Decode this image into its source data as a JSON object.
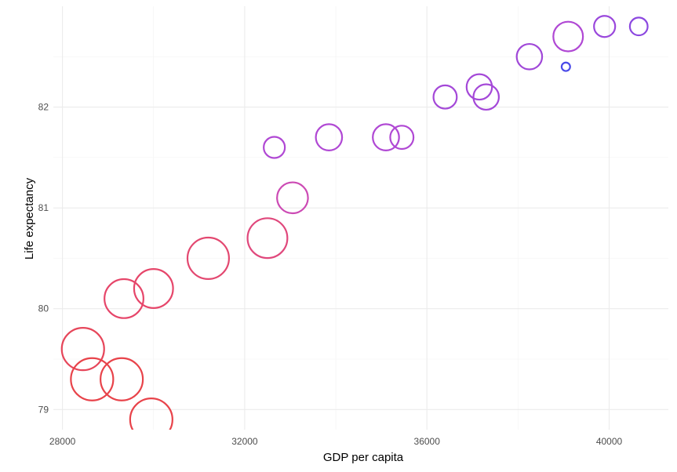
{
  "chart_data": {
    "type": "scatter",
    "title": "",
    "xlabel": "GDP per capita",
    "ylabel": "Life expectancy",
    "xlim": [
      27800,
      41300
    ],
    "ylim": [
      78.8,
      83.0
    ],
    "x_ticks": [
      28000,
      32000,
      36000,
      40000
    ],
    "x_tick_labels": [
      "28000",
      "32000",
      "36000",
      "40000"
    ],
    "y_ticks": [
      79,
      80,
      81,
      82
    ],
    "y_tick_labels": [
      "79",
      "80",
      "81",
      "82"
    ],
    "grid": true,
    "legend": "none",
    "color_scale": [
      "#e8434a",
      "#4848e8"
    ],
    "points": [
      {
        "x": 28450,
        "y": 79.6,
        "size": 1.0,
        "color": "#e6465a"
      },
      {
        "x": 28650,
        "y": 79.3,
        "size": 1.0,
        "color": "#e8434a"
      },
      {
        "x": 29300,
        "y": 79.3,
        "size": 1.0,
        "color": "#e8434a"
      },
      {
        "x": 29350,
        "y": 80.1,
        "size": 0.92,
        "color": "#e6466a"
      },
      {
        "x": 29950,
        "y": 78.9,
        "size": 1.0,
        "color": "#e8434a"
      },
      {
        "x": 30000,
        "y": 80.2,
        "size": 0.92,
        "color": "#e6466a"
      },
      {
        "x": 31200,
        "y": 80.5,
        "size": 0.98,
        "color": "#e34870"
      },
      {
        "x": 32500,
        "y": 80.7,
        "size": 0.94,
        "color": "#e0487c"
      },
      {
        "x": 33050,
        "y": 81.1,
        "size": 0.73,
        "color": "#cc4ab4"
      },
      {
        "x": 32650,
        "y": 81.6,
        "size": 0.5,
        "color": "#b048d4"
      },
      {
        "x": 33850,
        "y": 81.7,
        "size": 0.62,
        "color": "#b048d4"
      },
      {
        "x": 35100,
        "y": 81.7,
        "size": 0.62,
        "color": "#b048d4"
      },
      {
        "x": 35450,
        "y": 81.7,
        "size": 0.55,
        "color": "#b048d4"
      },
      {
        "x": 36400,
        "y": 82.1,
        "size": 0.55,
        "color": "#a448d8"
      },
      {
        "x": 37150,
        "y": 82.2,
        "size": 0.6,
        "color": "#a448d8"
      },
      {
        "x": 37300,
        "y": 82.1,
        "size": 0.6,
        "color": "#a448d8"
      },
      {
        "x": 38250,
        "y": 82.5,
        "size": 0.6,
        "color": "#a048d8"
      },
      {
        "x": 39050,
        "y": 82.4,
        "size": 0.2,
        "color": "#4a4ae8"
      },
      {
        "x": 39100,
        "y": 82.7,
        "size": 0.7,
        "color": "#b048d4"
      },
      {
        "x": 39900,
        "y": 82.8,
        "size": 0.5,
        "color": "#9a48dc"
      },
      {
        "x": 40650,
        "y": 82.8,
        "size": 0.42,
        "color": "#8c48e0"
      }
    ]
  }
}
